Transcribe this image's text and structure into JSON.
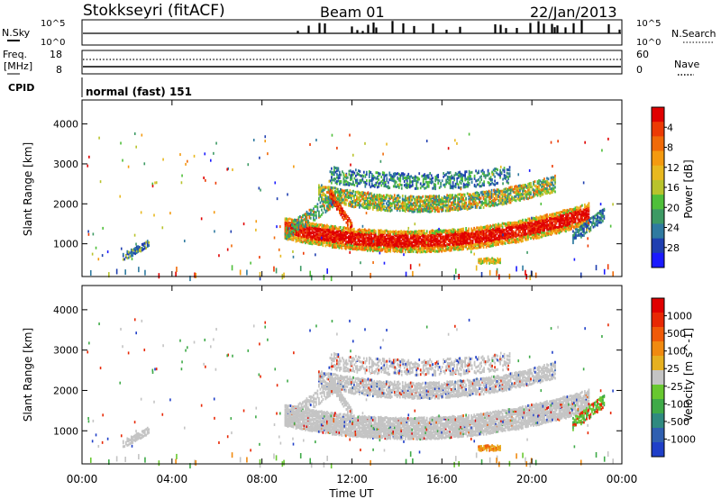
{
  "header": {
    "station": "Stokkseyri (fitACF)",
    "beam": "Beam 01",
    "date": "22/Jan/2013"
  },
  "panels": {
    "nsky": {
      "label": "N.Sky",
      "left_ticks": [
        "10^5",
        "10^0"
      ],
      "right_ticks": [
        "10^5",
        "10^0"
      ],
      "right_label": "N.Search"
    },
    "freq": {
      "label_top": "Freq.",
      "label_unit": "[MHz]",
      "left_ticks": [
        "18",
        "8"
      ],
      "right_ticks": [
        "60",
        "0"
      ],
      "right_label": "Nave"
    },
    "cpid": {
      "label": "CPID",
      "value": "normal (fast) 151"
    }
  },
  "chart_data": [
    {
      "type": "heatmap",
      "name": "power",
      "ylabel": "Slant Range [km]",
      "xlim": [
        0,
        24
      ],
      "ylim": [
        180,
        4600
      ],
      "yticks": [
        1000,
        2000,
        3000,
        4000
      ],
      "colorbar": {
        "label": "Power [dB]",
        "ticks": [
          "4",
          "8",
          "12",
          "16",
          "20",
          "24",
          "28"
        ],
        "colors": [
          "#1a1aff",
          "#1f3fb0",
          "#2f7aa0",
          "#3d9a64",
          "#4fbf3a",
          "#b8c32c",
          "#e8b81f",
          "#f49a10",
          "#f06a08",
          "#ec3a04",
          "#e00000"
        ]
      }
    },
    {
      "type": "heatmap",
      "name": "velocity",
      "ylabel": "Slant Range [km]",
      "xlabel": "Time UT",
      "xlim": [
        0,
        24
      ],
      "ylim": [
        180,
        4600
      ],
      "yticks": [
        1000,
        2000,
        3000,
        4000
      ],
      "xticks": [
        "00:00",
        "04:00",
        "08:00",
        "12:00",
        "16:00",
        "20:00",
        "00:00"
      ],
      "colorbar": {
        "label": "Velocity [m s^-1]",
        "ticks": [
          "1000",
          "500",
          "100",
          "25",
          "-25",
          "-100",
          "-500",
          "-1000"
        ],
        "colors": [
          "#1f3fc8",
          "#2f5fb0",
          "#2f8a80",
          "#3faa48",
          "#68c830",
          "#c4c4c4",
          "#e6b020",
          "#f08a10",
          "#f05a08",
          "#e82804",
          "#e00000"
        ]
      }
    }
  ]
}
